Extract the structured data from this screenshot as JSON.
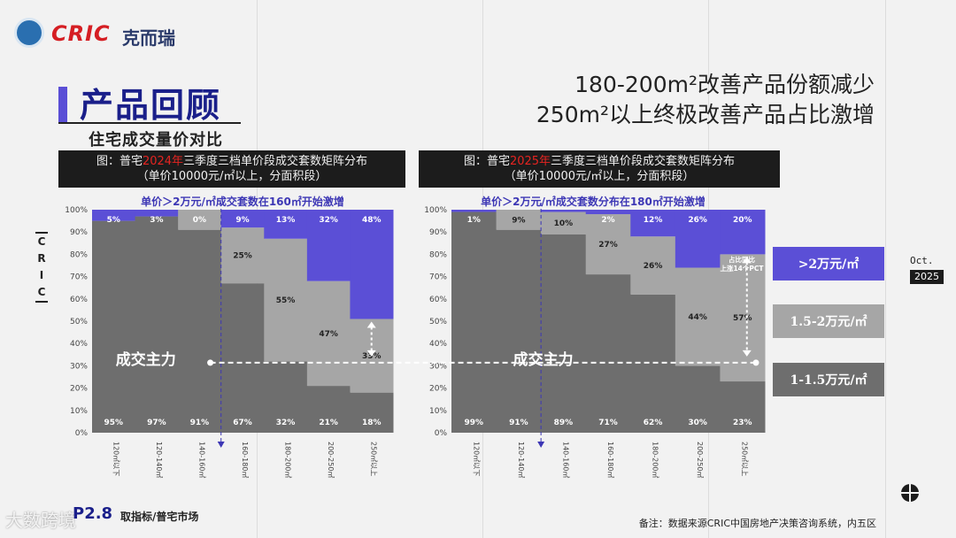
{
  "brand": {
    "logo_text": "CRIC",
    "logo_cn": "克而瑞"
  },
  "page": {
    "title": "产品回顾",
    "subtitle": "住宅成交量价对比",
    "headline1": "180-200m²改善产品份额减少",
    "headline2": "250m²以上终极改善产品占比激增",
    "side_label": "C R I C",
    "month": "Oct.",
    "year": "2025",
    "page_number": "P2.8",
    "footer_left": "取指标/普宅市场",
    "footer_note": "备注：数据来源CRIC中国房地产决策咨询系统，内五区",
    "watermark": "大数跨境"
  },
  "legend": [
    {
      "label": ">2万元/㎡",
      "color": "#5b4fd6"
    },
    {
      "label": "1.5-2万元/㎡",
      "color": "#a6a6a6"
    },
    {
      "label": "1-1.5万元/㎡",
      "color": "#6e6e6e"
    }
  ],
  "colors": {
    "low": "#6e6e6e",
    "mid": "#a6a6a6",
    "high": "#5b4fd6",
    "arrow": "#ffffff"
  },
  "chart_data": [
    {
      "type": "bar",
      "stacked": true,
      "title_prefix": "图：普宅",
      "title_year": "2024年",
      "title_suffix": "三季度三档单价段成交套数矩阵分布",
      "title_line2": "（单价10000元/㎡以上，分面积段）",
      "note": "单价＞2万元/㎡成交套数在160㎡开始激增",
      "main_label": "成交主力",
      "categories": [
        "120㎡以下",
        "120-140㎡",
        "140-160㎡",
        "160-180㎡",
        "180-200㎡",
        "200-250㎡",
        "250㎡以上"
      ],
      "series": [
        {
          "name": "1-1.5万元/㎡",
          "values": [
            95,
            97,
            91,
            67,
            32,
            21,
            18
          ]
        },
        {
          "name": "1.5-2万元/㎡",
          "values": [
            0,
            0,
            9,
            25,
            55,
            47,
            33
          ]
        },
        {
          "name": ">2万元/㎡",
          "values": [
            5,
            3,
            0,
            9,
            13,
            32,
            48
          ]
        }
      ],
      "labels": {
        "low": [
          "95%",
          "97%",
          "91%",
          "67%",
          "32%",
          "21%",
          "18%"
        ],
        "mid": [
          "",
          "",
          "",
          "25%",
          "55%",
          "47%",
          "33%"
        ],
        "high": [
          "5%",
          "3%",
          "0%",
          "9%",
          "13%",
          "32%",
          "48%"
        ]
      },
      "yticks": [
        "0%",
        "10%",
        "20%",
        "30%",
        "40%",
        "50%",
        "60%",
        "70%",
        "80%",
        "90%",
        "100%"
      ],
      "ylim": [
        0,
        100
      ],
      "divider_after_index": 2,
      "arrow_category_index": 6,
      "arrow_level": 33
    },
    {
      "type": "bar",
      "stacked": true,
      "title_prefix": "图：普宅",
      "title_year": "2025年",
      "title_suffix": "三季度三档单价段成交套数矩阵分布",
      "title_line2": "（单价10000元/㎡以上，分面积段）",
      "note": "单价＞2万元/㎡成交套数分布在180㎡开始激增",
      "main_label": "成交主力",
      "callout": "占比同比\n上涨14个PCT",
      "categories": [
        "120㎡以下",
        "120-140㎡",
        "140-160㎡",
        "160-180㎡",
        "180-200㎡",
        "200-250㎡",
        "250㎡以上"
      ],
      "series": [
        {
          "name": "1-1.5万元/㎡",
          "values": [
            99,
            91,
            89,
            71,
            62,
            30,
            23
          ]
        },
        {
          "name": "1.5-2万元/㎡",
          "values": [
            0,
            9,
            10,
            27,
            26,
            44,
            57
          ]
        },
        {
          "name": ">2万元/㎡",
          "values": [
            1,
            0,
            1,
            2,
            12,
            26,
            20
          ]
        }
      ],
      "labels": {
        "low": [
          "99%",
          "91%",
          "89%",
          "71%",
          "62%",
          "30%",
          "23%"
        ],
        "mid": [
          "",
          "9%",
          "10%",
          "27%",
          "26%",
          "44%",
          "57%"
        ],
        "high": [
          "1%",
          "",
          "",
          "2%",
          "12%",
          "26%",
          "20%"
        ]
      },
      "yticks": [
        "0%",
        "10%",
        "20%",
        "30%",
        "40%",
        "50%",
        "60%",
        "70%",
        "80%",
        "90%",
        "100%"
      ],
      "ylim": [
        0,
        100
      ],
      "divider_after_index": 1,
      "arrow_category_index": 6,
      "arrow_level": 33
    }
  ]
}
